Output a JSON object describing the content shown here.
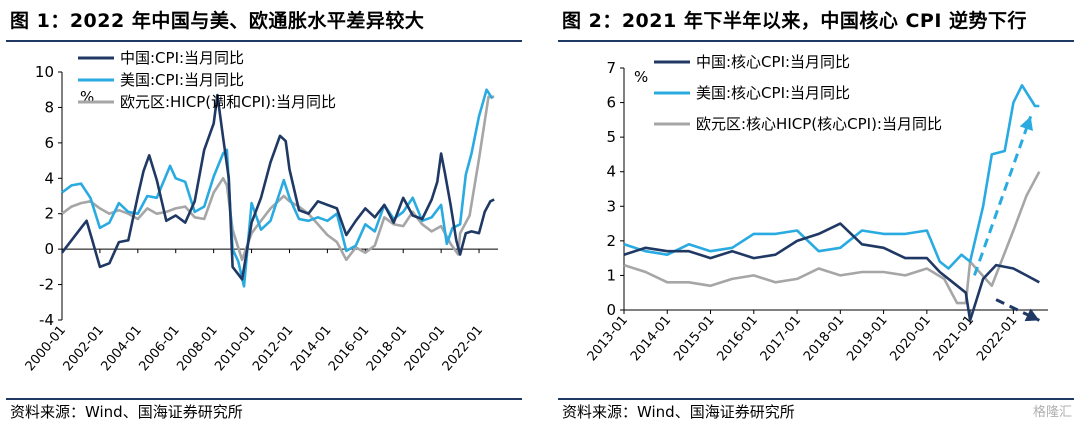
{
  "charts": [
    {
      "title": "图 1：2022 年中国与美、欧通胀水平差异较大",
      "source": "资料来源：Wind、国海证券研究所",
      "unit": "%"
    },
    {
      "title": "图 2：2021 年下半年以来，中国核心 CPI 逆势下行",
      "source": "资料来源：Wind、国海证券研究所",
      "unit": "%"
    }
  ],
  "watermark": "格隆汇",
  "colors": {
    "china": "#1f3864",
    "us": "#29abe2",
    "eu": "#a6a6a6"
  },
  "chart_data": [
    {
      "type": "line",
      "title": "图 1：2022 年中国与美、欧通胀水平差异较大",
      "ylabel": "%",
      "ylim": [
        -4,
        10
      ],
      "yticks": [
        -4,
        -2,
        0,
        2,
        4,
        6,
        8,
        10
      ],
      "xlim": [
        2000.0,
        2023.0
      ],
      "xticks": [
        2000,
        2002,
        2004,
        2006,
        2008,
        2010,
        2012,
        2014,
        2016,
        2018,
        2020,
        2022
      ],
      "xtick_labels": [
        "2000-01",
        "2002-01",
        "2004-01",
        "2006-01",
        "2008-01",
        "2010-01",
        "2012-01",
        "2014-01",
        "2016-01",
        "2018-01",
        "2020-01",
        "2022-01"
      ],
      "legend_position": "top-left",
      "grid": false,
      "series": [
        {
          "name": "中国:CPI:当月同比",
          "color": "#1f3864",
          "x": [
            2000.0,
            2000.5,
            2001.0,
            2001.3,
            2001.6,
            2002.0,
            2002.5,
            2003.0,
            2003.5,
            2004.0,
            2004.3,
            2004.6,
            2005.0,
            2005.5,
            2006.0,
            2006.5,
            2007.0,
            2007.5,
            2008.0,
            2008.2,
            2008.5,
            2008.8,
            2009.0,
            2009.5,
            2010.0,
            2010.5,
            2011.0,
            2011.5,
            2011.8,
            2012.0,
            2012.5,
            2013.0,
            2013.5,
            2014.0,
            2014.5,
            2015.0,
            2015.5,
            2016.0,
            2016.5,
            2017.0,
            2017.5,
            2018.0,
            2018.5,
            2019.0,
            2019.5,
            2019.8,
            2020.0,
            2020.2,
            2020.5,
            2020.8,
            2021.0,
            2021.3,
            2021.6,
            2022.0,
            2022.3,
            2022.6,
            2022.8
          ],
          "y": [
            -0.2,
            0.5,
            1.2,
            1.6,
            0.5,
            -1.0,
            -0.8,
            0.4,
            0.5,
            3.0,
            4.4,
            5.3,
            3.9,
            1.6,
            1.9,
            1.5,
            2.7,
            5.6,
            7.1,
            8.7,
            6.3,
            4.0,
            -1.0,
            -1.7,
            1.5,
            2.9,
            4.9,
            6.4,
            6.1,
            4.5,
            2.2,
            2.0,
            2.7,
            2.5,
            2.3,
            0.8,
            1.6,
            2.3,
            1.8,
            2.5,
            1.5,
            2.9,
            1.9,
            1.7,
            2.8,
            3.8,
            5.4,
            4.3,
            2.5,
            0.5,
            -0.3,
            0.9,
            1.0,
            0.9,
            2.1,
            2.7,
            2.8
          ]
        },
        {
          "name": "美国:CPI:当月同比",
          "color": "#29abe2",
          "x": [
            2000.0,
            2000.5,
            2001.0,
            2001.5,
            2002.0,
            2002.5,
            2003.0,
            2003.5,
            2004.0,
            2004.5,
            2005.0,
            2005.7,
            2006.0,
            2006.5,
            2007.0,
            2007.5,
            2008.0,
            2008.5,
            2008.7,
            2009.0,
            2009.3,
            2009.6,
            2010.0,
            2010.5,
            2011.0,
            2011.7,
            2012.0,
            2012.5,
            2013.0,
            2013.5,
            2014.0,
            2014.5,
            2015.0,
            2015.5,
            2016.0,
            2016.5,
            2017.0,
            2017.5,
            2018.0,
            2018.5,
            2019.0,
            2019.5,
            2020.0,
            2020.3,
            2020.6,
            2021.0,
            2021.3,
            2021.6,
            2022.0,
            2022.4,
            2022.7
          ],
          "y": [
            3.2,
            3.6,
            3.7,
            2.9,
            1.2,
            1.5,
            2.6,
            2.1,
            2.0,
            3.0,
            2.9,
            4.7,
            4.0,
            3.8,
            2.1,
            2.4,
            4.1,
            5.4,
            5.6,
            0.0,
            -0.7,
            -2.1,
            2.6,
            1.1,
            1.6,
            3.9,
            2.9,
            1.7,
            1.6,
            1.8,
            1.6,
            2.0,
            -0.1,
            0.2,
            1.4,
            1.0,
            2.5,
            1.7,
            2.1,
            2.9,
            1.6,
            1.8,
            2.5,
            0.3,
            1.2,
            1.4,
            4.2,
            5.4,
            7.5,
            9.0,
            8.5
          ]
        },
        {
          "name": "欧元区:HICP(调和CPI):当月同比",
          "color": "#a6a6a6",
          "x": [
            2000.0,
            2000.5,
            2001.0,
            2001.5,
            2002.0,
            2002.5,
            2003.0,
            2003.5,
            2004.0,
            2004.5,
            2005.0,
            2005.5,
            2006.0,
            2006.5,
            2007.0,
            2007.5,
            2008.0,
            2008.5,
            2008.7,
            2009.0,
            2009.5,
            2010.0,
            2010.5,
            2011.0,
            2011.7,
            2012.0,
            2012.5,
            2013.0,
            2013.5,
            2014.0,
            2014.5,
            2015.0,
            2015.5,
            2016.0,
            2016.5,
            2017.0,
            2017.5,
            2018.0,
            2018.5,
            2019.0,
            2019.5,
            2020.0,
            2020.5,
            2020.9,
            2021.0,
            2021.5,
            2022.0,
            2022.5,
            2022.8
          ],
          "y": [
            2.0,
            2.4,
            2.6,
            2.7,
            2.3,
            2.0,
            2.2,
            2.0,
            1.7,
            2.3,
            2.0,
            2.1,
            2.3,
            2.4,
            1.8,
            1.7,
            3.2,
            4.0,
            3.6,
            1.1,
            -0.6,
            0.9,
            1.6,
            2.3,
            3.0,
            2.7,
            2.4,
            2.0,
            1.4,
            0.8,
            0.4,
            -0.6,
            0.1,
            -0.2,
            0.2,
            1.8,
            1.4,
            1.3,
            2.1,
            1.4,
            1.0,
            1.3,
            0.3,
            -0.3,
            0.9,
            1.9,
            5.1,
            8.6,
            8.6
          ]
        }
      ]
    },
    {
      "type": "line",
      "title": "图 2：2021 年下半年以来，中国核心 CPI 逆势下行",
      "ylabel": "%",
      "ylim": [
        0,
        7
      ],
      "yticks": [
        0,
        1,
        2,
        3,
        4,
        5,
        6,
        7
      ],
      "xlim": [
        2013.0,
        2022.8
      ],
      "xticks": [
        2013,
        2014,
        2015,
        2016,
        2017,
        2018,
        2019,
        2020,
        2021,
        2022
      ],
      "xtick_labels": [
        "2013-01",
        "2014-01",
        "2015-01",
        "2016-01",
        "2017-01",
        "2018-01",
        "2019-01",
        "2020-01",
        "2021-01",
        "2022-01"
      ],
      "legend_position": "top-left",
      "grid": false,
      "series": [
        {
          "name": "中国:核心CPI:当月同比",
          "color": "#1f3864",
          "x": [
            2013.0,
            2013.5,
            2014.0,
            2014.5,
            2015.0,
            2015.5,
            2016.0,
            2016.5,
            2017.0,
            2017.5,
            2018.0,
            2018.5,
            2019.0,
            2019.5,
            2020.0,
            2020.3,
            2020.6,
            2020.9,
            2021.0,
            2021.3,
            2021.6,
            2022.0,
            2022.3,
            2022.6
          ],
          "y": [
            1.6,
            1.8,
            1.7,
            1.7,
            1.5,
            1.7,
            1.5,
            1.6,
            2.0,
            2.2,
            2.5,
            1.9,
            1.8,
            1.5,
            1.5,
            1.1,
            0.8,
            0.5,
            -0.3,
            0.9,
            1.3,
            1.2,
            1.0,
            0.8
          ]
        },
        {
          "name": "美国:核心CPI:当月同比",
          "color": "#29abe2",
          "x": [
            2013.0,
            2013.5,
            2014.0,
            2014.5,
            2015.0,
            2015.5,
            2016.0,
            2016.5,
            2017.0,
            2017.5,
            2018.0,
            2018.5,
            2019.0,
            2019.5,
            2020.0,
            2020.3,
            2020.5,
            2020.8,
            2021.0,
            2021.3,
            2021.5,
            2021.8,
            2022.0,
            2022.2,
            2022.5,
            2022.6
          ],
          "y": [
            1.9,
            1.7,
            1.6,
            1.9,
            1.7,
            1.8,
            2.2,
            2.2,
            2.3,
            1.7,
            1.8,
            2.3,
            2.2,
            2.2,
            2.3,
            1.4,
            1.2,
            1.6,
            1.4,
            3.0,
            4.5,
            4.6,
            6.0,
            6.5,
            5.9,
            5.9
          ]
        },
        {
          "name": "欧元区:核心HICP(核心CPI):当月同比",
          "color": "#a6a6a6",
          "x": [
            2013.0,
            2013.5,
            2014.0,
            2014.5,
            2015.0,
            2015.5,
            2016.0,
            2016.5,
            2017.0,
            2017.5,
            2018.0,
            2018.5,
            2019.0,
            2019.5,
            2020.0,
            2020.4,
            2020.7,
            2020.9,
            2021.0,
            2021.5,
            2022.0,
            2022.3,
            2022.6
          ],
          "y": [
            1.3,
            1.1,
            0.8,
            0.8,
            0.7,
            0.9,
            1.0,
            0.8,
            0.9,
            1.2,
            1.0,
            1.1,
            1.1,
            1.0,
            1.2,
            0.9,
            0.2,
            0.2,
            1.4,
            0.7,
            2.3,
            3.3,
            4.0
          ]
        }
      ],
      "annotations": [
        {
          "kind": "arrow",
          "color": "#29abe2",
          "from": [
            2021.1,
            1.0
          ],
          "to": [
            2022.4,
            5.6
          ]
        },
        {
          "kind": "arrow",
          "color": "#1f3864",
          "from": [
            2021.6,
            0.3
          ],
          "to": [
            2022.6,
            -0.3
          ]
        }
      ]
    }
  ]
}
